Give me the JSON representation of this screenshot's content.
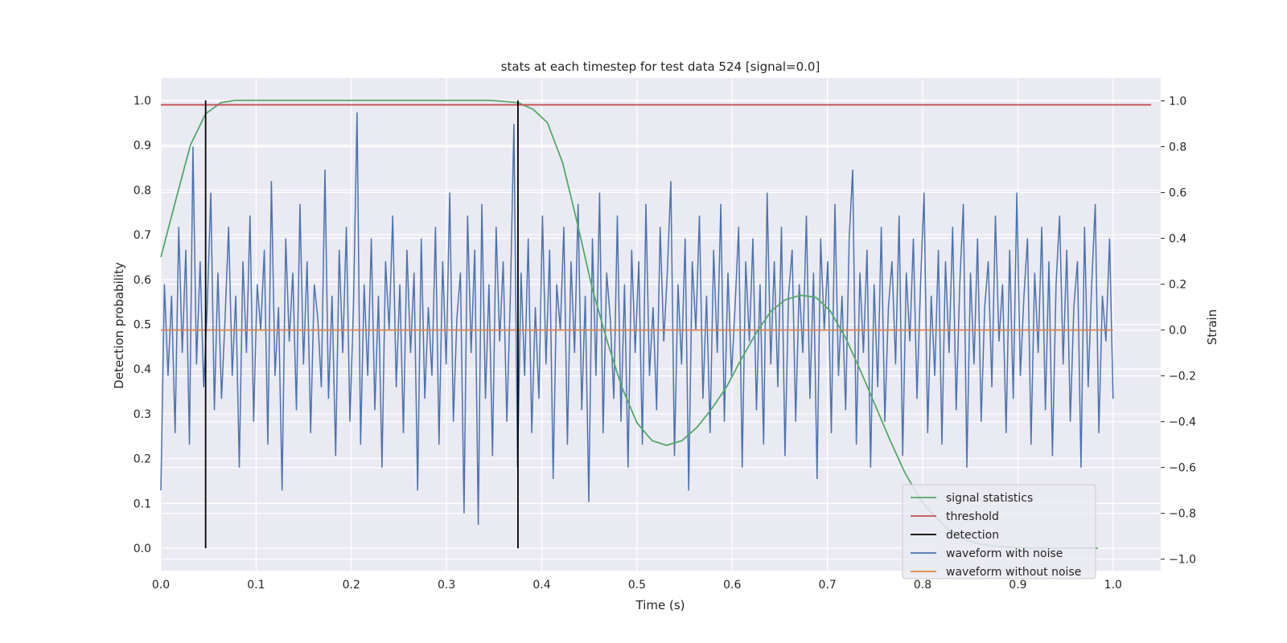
{
  "chart_data": {
    "type": "line",
    "title": "stats at each timestep for test data 524 [signal=0.0]",
    "xlabel": "Time (s)",
    "ylabel_left": "Detection probability",
    "ylabel_right": "Strain",
    "xlim": [
      0.0,
      1.05
    ],
    "ylim_left": [
      -0.05,
      1.05
    ],
    "ylim_right": [
      -1.05,
      1.1
    ],
    "x_ticks": [
      "0.0",
      "0.1",
      "0.2",
      "0.3",
      "0.4",
      "0.5",
      "0.6",
      "0.7",
      "0.8",
      "0.9",
      "1.0"
    ],
    "y_left_ticks": [
      "0.0",
      "0.1",
      "0.2",
      "0.3",
      "0.4",
      "0.5",
      "0.6",
      "0.7",
      "0.8",
      "0.9",
      "1.0"
    ],
    "y_right_ticks": [
      "−1.0",
      "−0.8",
      "−0.6",
      "−0.4",
      "−0.2",
      "0.0",
      "0.2",
      "0.4",
      "0.6",
      "0.8",
      "1.0"
    ],
    "grid": true,
    "legend_position": "bottom-right",
    "colors": {
      "signal_statistics": "#55a868",
      "threshold": "#c44e52",
      "detection": "#000000",
      "waveform_with_noise": "#4c72b0",
      "waveform_without_noise": "#dd8452",
      "background": "#eaeaf2",
      "grid": "#ffffff"
    },
    "series": [
      {
        "name": "signal statistics",
        "axis": "left",
        "x": [
          0.0,
          0.016,
          0.031,
          0.047,
          0.063,
          0.078,
          0.094,
          0.109,
          0.125,
          0.156,
          0.188,
          0.219,
          0.25,
          0.281,
          0.313,
          0.344,
          0.359,
          0.375,
          0.391,
          0.406,
          0.422,
          0.438,
          0.453,
          0.469,
          0.484,
          0.5,
          0.516,
          0.531,
          0.547,
          0.563,
          0.578,
          0.594,
          0.609,
          0.625,
          0.641,
          0.656,
          0.672,
          0.688,
          0.703,
          0.719,
          0.734,
          0.75,
          0.766,
          0.781,
          0.797,
          0.813,
          0.828,
          0.844,
          0.859,
          0.875,
          0.891,
          0.906,
          0.922,
          0.938,
          0.953,
          0.969,
          0.984
        ],
        "y": [
          0.65,
          0.78,
          0.9,
          0.97,
          0.995,
          1.0,
          1.0,
          1.0,
          1.0,
          1.0,
          1.0,
          1.0,
          1.0,
          1.0,
          1.0,
          1.0,
          0.998,
          0.995,
          0.98,
          0.95,
          0.86,
          0.72,
          0.58,
          0.46,
          0.36,
          0.28,
          0.24,
          0.23,
          0.24,
          0.27,
          0.31,
          0.36,
          0.42,
          0.48,
          0.53,
          0.555,
          0.565,
          0.56,
          0.53,
          0.47,
          0.4,
          0.32,
          0.24,
          0.17,
          0.11,
          0.07,
          0.04,
          0.02,
          0.01,
          0.005,
          0.002,
          0.001,
          0.0,
          0.0,
          0.0,
          0.0,
          0.0
        ]
      },
      {
        "name": "threshold",
        "axis": "left",
        "x": [
          0.0,
          1.04
        ],
        "y": [
          0.99,
          0.99
        ]
      },
      {
        "name": "detection",
        "axis": "left",
        "x": [
          0.047,
          0.375
        ],
        "y": [
          0.0,
          1.0
        ]
      },
      {
        "name": "waveform with noise",
        "axis": "right",
        "x_start": 0.0,
        "x_end": 1.0,
        "y": [
          -0.7,
          0.2,
          -0.2,
          0.15,
          -0.45,
          0.45,
          -0.1,
          0.35,
          -0.5,
          0.8,
          -0.15,
          0.3,
          -0.25,
          0.1,
          0.6,
          -0.35,
          0.25,
          -0.3,
          0.05,
          0.45,
          -0.2,
          0.15,
          -0.6,
          0.3,
          -0.1,
          0.5,
          -0.4,
          0.2,
          0.0,
          0.35,
          -0.5,
          0.65,
          -0.2,
          0.1,
          -0.7,
          0.4,
          -0.05,
          0.25,
          -0.35,
          0.55,
          -0.15,
          0.3,
          -0.45,
          0.2,
          0.05,
          -0.25,
          0.7,
          -0.3,
          0.15,
          -0.55,
          0.35,
          -0.1,
          0.45,
          -0.4,
          0.1,
          0.95,
          -0.5,
          0.2,
          -0.2,
          0.4,
          -0.35,
          0.15,
          -0.6,
          0.3,
          0.0,
          0.5,
          -0.25,
          0.2,
          -0.45,
          0.35,
          -0.1,
          0.25,
          -0.7,
          0.4,
          -0.3,
          0.1,
          -0.2,
          0.45,
          -0.5,
          0.3,
          -0.15,
          0.6,
          -0.4,
          0.05,
          0.25,
          -0.8,
          0.5,
          -0.1,
          0.35,
          -0.85,
          0.55,
          -0.3,
          0.2,
          -0.55,
          0.45,
          -0.05,
          0.3,
          -0.4,
          0.15,
          0.9,
          -0.6,
          0.25,
          -0.2,
          0.4,
          -0.45,
          0.1,
          -0.3,
          0.5,
          -0.15,
          0.35,
          -0.65,
          0.2,
          0.0,
          0.45,
          -0.5,
          0.3,
          -0.1,
          0.55,
          -0.35,
          0.15,
          -0.75,
          0.4,
          -0.2,
          0.6,
          -0.45,
          0.25,
          0.05,
          -0.3,
          0.5,
          -0.4,
          0.2,
          -0.6,
          0.35,
          -0.1,
          0.3,
          -0.5,
          0.55,
          -0.2,
          0.1,
          -0.35,
          0.45,
          -0.05,
          0.25,
          0.65,
          -0.55,
          0.2,
          -0.15,
          0.4,
          -0.7,
          0.3,
          0.0,
          0.5,
          -0.3,
          0.15,
          -0.45,
          0.35,
          -0.1,
          0.55,
          -0.4,
          0.25,
          -0.2,
          0.1,
          0.45,
          -0.6,
          0.3,
          -0.05,
          0.4,
          -0.35,
          0.2,
          -0.5,
          0.6,
          -0.15,
          0.3,
          -0.25,
          0.45,
          -0.55,
          0.15,
          0.35,
          -0.4,
          0.2,
          -0.1,
          0.5,
          -0.3,
          0.25,
          -0.65,
          0.4,
          0.0,
          0.3,
          -0.45,
          0.55,
          -0.2,
          0.15,
          -0.35,
          0.4,
          0.7,
          -0.5,
          0.25,
          -0.1,
          0.35,
          -0.6,
          0.2,
          -0.25,
          0.45,
          -0.4,
          0.1,
          0.3,
          -0.15,
          0.5,
          -0.55,
          0.25,
          -0.05,
          0.4,
          -0.3,
          0.2,
          0.6,
          -0.45,
          0.15,
          -0.2,
          0.35,
          -0.5,
          0.3,
          -0.1,
          0.45,
          -0.35,
          0.2,
          0.55,
          -0.6,
          0.25,
          -0.15,
          0.4,
          -0.4,
          0.1,
          0.3,
          -0.25,
          0.5,
          -0.05,
          0.2,
          -0.45,
          0.35,
          -0.3,
          0.6,
          -0.2,
          0.15,
          0.4,
          -0.5,
          0.25,
          -0.1,
          0.45,
          -0.35,
          0.3,
          -0.55,
          0.2,
          0.5,
          -0.15,
          0.35,
          -0.4,
          0.1,
          0.3,
          -0.6,
          0.45,
          -0.25,
          0.2,
          0.55,
          -0.45,
          0.15,
          -0.05,
          0.4,
          -0.3
        ]
      },
      {
        "name": "waveform without noise",
        "axis": "right",
        "x": [
          0.0,
          1.0
        ],
        "y": [
          0.0,
          0.0
        ]
      }
    ],
    "legend": [
      {
        "label": "signal statistics",
        "key": "signal_statistics"
      },
      {
        "label": "threshold",
        "key": "threshold"
      },
      {
        "label": "detection",
        "key": "detection"
      },
      {
        "label": "waveform with noise",
        "key": "waveform_with_noise"
      },
      {
        "label": "waveform without noise",
        "key": "waveform_without_noise"
      }
    ]
  }
}
